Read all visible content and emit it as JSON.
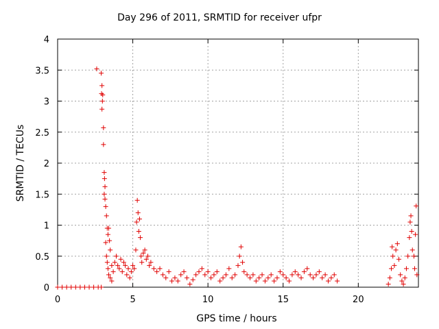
{
  "chart_data": {
    "type": "scatter",
    "title": "Day 296 of 2011, SRMTID for receiver ufpr",
    "xlabel": "GPS time / hours",
    "ylabel": "SRMTID / TECUs",
    "xlim": [
      0,
      24
    ],
    "ylim": [
      0,
      4
    ],
    "x_ticks": [
      0,
      5,
      10,
      15,
      20
    ],
    "x_tick_labels": [
      "0",
      "5",
      "10",
      "15",
      "20"
    ],
    "y_ticks": [
      0,
      0.5,
      1,
      1.5,
      2,
      2.5,
      3,
      3.5,
      4
    ],
    "y_tick_labels": [
      "0",
      "0.5",
      "1",
      "1.5",
      "2",
      "2.5",
      "3",
      "3.5",
      "4"
    ],
    "grid": true,
    "marker": "+",
    "color": "#e00000",
    "series": [
      {
        "name": "SRMTID",
        "points": [
          [
            0.0,
            0.0
          ],
          [
            0.3,
            0.0
          ],
          [
            0.6,
            0.0
          ],
          [
            0.9,
            0.0
          ],
          [
            1.2,
            0.0
          ],
          [
            1.5,
            0.0
          ],
          [
            1.8,
            0.0
          ],
          [
            2.1,
            0.0
          ],
          [
            2.4,
            0.0
          ],
          [
            2.7,
            0.0
          ],
          [
            2.9,
            0.0
          ],
          [
            2.6,
            3.52
          ],
          [
            2.9,
            3.45
          ],
          [
            2.95,
            3.25
          ],
          [
            2.92,
            3.12
          ],
          [
            3.0,
            3.1
          ],
          [
            2.98,
            3.0
          ],
          [
            2.95,
            2.87
          ],
          [
            3.05,
            2.57
          ],
          [
            3.05,
            2.3
          ],
          [
            3.1,
            1.85
          ],
          [
            3.12,
            1.75
          ],
          [
            3.15,
            1.62
          ],
          [
            3.1,
            1.5
          ],
          [
            3.15,
            1.42
          ],
          [
            3.2,
            1.3
          ],
          [
            3.25,
            1.15
          ],
          [
            3.3,
            0.95
          ],
          [
            3.35,
            0.85
          ],
          [
            3.4,
            0.95
          ],
          [
            3.45,
            0.75
          ],
          [
            3.5,
            0.6
          ],
          [
            3.2,
            0.72
          ],
          [
            3.25,
            0.5
          ],
          [
            3.3,
            0.4
          ],
          [
            3.35,
            0.3
          ],
          [
            3.4,
            0.2
          ],
          [
            3.5,
            0.15
          ],
          [
            3.6,
            0.1
          ],
          [
            3.6,
            0.35
          ],
          [
            3.7,
            0.25
          ],
          [
            3.8,
            0.4
          ],
          [
            3.9,
            0.5
          ],
          [
            4.0,
            0.35
          ],
          [
            4.1,
            0.3
          ],
          [
            4.2,
            0.45
          ],
          [
            4.3,
            0.25
          ],
          [
            4.4,
            0.4
          ],
          [
            4.5,
            0.35
          ],
          [
            4.6,
            0.2
          ],
          [
            4.7,
            0.3
          ],
          [
            4.8,
            0.15
          ],
          [
            4.9,
            0.25
          ],
          [
            5.0,
            0.35
          ],
          [
            5.1,
            0.3
          ],
          [
            5.2,
            0.6
          ],
          [
            5.25,
            1.05
          ],
          [
            5.3,
            1.4
          ],
          [
            5.35,
            1.2
          ],
          [
            5.4,
            0.9
          ],
          [
            5.45,
            1.1
          ],
          [
            5.5,
            0.8
          ],
          [
            5.55,
            0.5
          ],
          [
            5.6,
            0.4
          ],
          [
            5.7,
            0.55
          ],
          [
            5.8,
            0.6
          ],
          [
            5.9,
            0.45
          ],
          [
            6.0,
            0.5
          ],
          [
            6.1,
            0.35
          ],
          [
            6.2,
            0.4
          ],
          [
            6.4,
            0.3
          ],
          [
            6.6,
            0.25
          ],
          [
            6.8,
            0.3
          ],
          [
            7.0,
            0.2
          ],
          [
            7.2,
            0.15
          ],
          [
            7.4,
            0.25
          ],
          [
            7.6,
            0.1
          ],
          [
            7.8,
            0.15
          ],
          [
            8.0,
            0.1
          ],
          [
            8.2,
            0.2
          ],
          [
            8.4,
            0.25
          ],
          [
            8.6,
            0.15
          ],
          [
            8.8,
            0.05
          ],
          [
            9.0,
            0.12
          ],
          [
            9.2,
            0.2
          ],
          [
            9.4,
            0.25
          ],
          [
            9.6,
            0.3
          ],
          [
            9.8,
            0.2
          ],
          [
            10.0,
            0.25
          ],
          [
            10.2,
            0.15
          ],
          [
            10.4,
            0.2
          ],
          [
            10.6,
            0.25
          ],
          [
            10.8,
            0.1
          ],
          [
            11.0,
            0.15
          ],
          [
            11.2,
            0.2
          ],
          [
            11.4,
            0.3
          ],
          [
            11.6,
            0.15
          ],
          [
            11.8,
            0.2
          ],
          [
            12.0,
            0.35
          ],
          [
            12.1,
            0.5
          ],
          [
            12.2,
            0.65
          ],
          [
            12.3,
            0.4
          ],
          [
            12.4,
            0.25
          ],
          [
            12.6,
            0.2
          ],
          [
            12.8,
            0.15
          ],
          [
            13.0,
            0.2
          ],
          [
            13.2,
            0.1
          ],
          [
            13.4,
            0.15
          ],
          [
            13.6,
            0.2
          ],
          [
            13.8,
            0.1
          ],
          [
            14.0,
            0.15
          ],
          [
            14.2,
            0.2
          ],
          [
            14.4,
            0.1
          ],
          [
            14.6,
            0.15
          ],
          [
            14.8,
            0.25
          ],
          [
            15.0,
            0.2
          ],
          [
            15.2,
            0.15
          ],
          [
            15.4,
            0.1
          ],
          [
            15.6,
            0.2
          ],
          [
            15.8,
            0.25
          ],
          [
            16.0,
            0.2
          ],
          [
            16.2,
            0.15
          ],
          [
            16.4,
            0.25
          ],
          [
            16.6,
            0.3
          ],
          [
            16.8,
            0.2
          ],
          [
            17.0,
            0.15
          ],
          [
            17.2,
            0.2
          ],
          [
            17.4,
            0.25
          ],
          [
            17.6,
            0.15
          ],
          [
            17.8,
            0.2
          ],
          [
            18.0,
            0.1
          ],
          [
            18.2,
            0.15
          ],
          [
            18.4,
            0.2
          ],
          [
            18.6,
            0.1
          ],
          [
            22.0,
            0.05
          ],
          [
            22.1,
            0.15
          ],
          [
            22.2,
            0.3
          ],
          [
            22.25,
            0.65
          ],
          [
            22.3,
            0.5
          ],
          [
            22.4,
            0.35
          ],
          [
            22.5,
            0.6
          ],
          [
            22.6,
            0.7
          ],
          [
            22.7,
            0.45
          ],
          [
            22.8,
            0.2
          ],
          [
            22.9,
            0.1
          ],
          [
            23.0,
            0.05
          ],
          [
            23.1,
            0.15
          ],
          [
            23.2,
            0.3
          ],
          [
            23.3,
            0.5
          ],
          [
            23.4,
            0.8
          ],
          [
            23.45,
            1.05
          ],
          [
            23.5,
            1.15
          ],
          [
            23.55,
            0.9
          ],
          [
            23.6,
            0.6
          ],
          [
            23.7,
            0.5
          ],
          [
            23.75,
            0.3
          ],
          [
            23.8,
            0.85
          ],
          [
            23.85,
            1.31
          ],
          [
            23.9,
            0.2
          ]
        ]
      }
    ]
  }
}
